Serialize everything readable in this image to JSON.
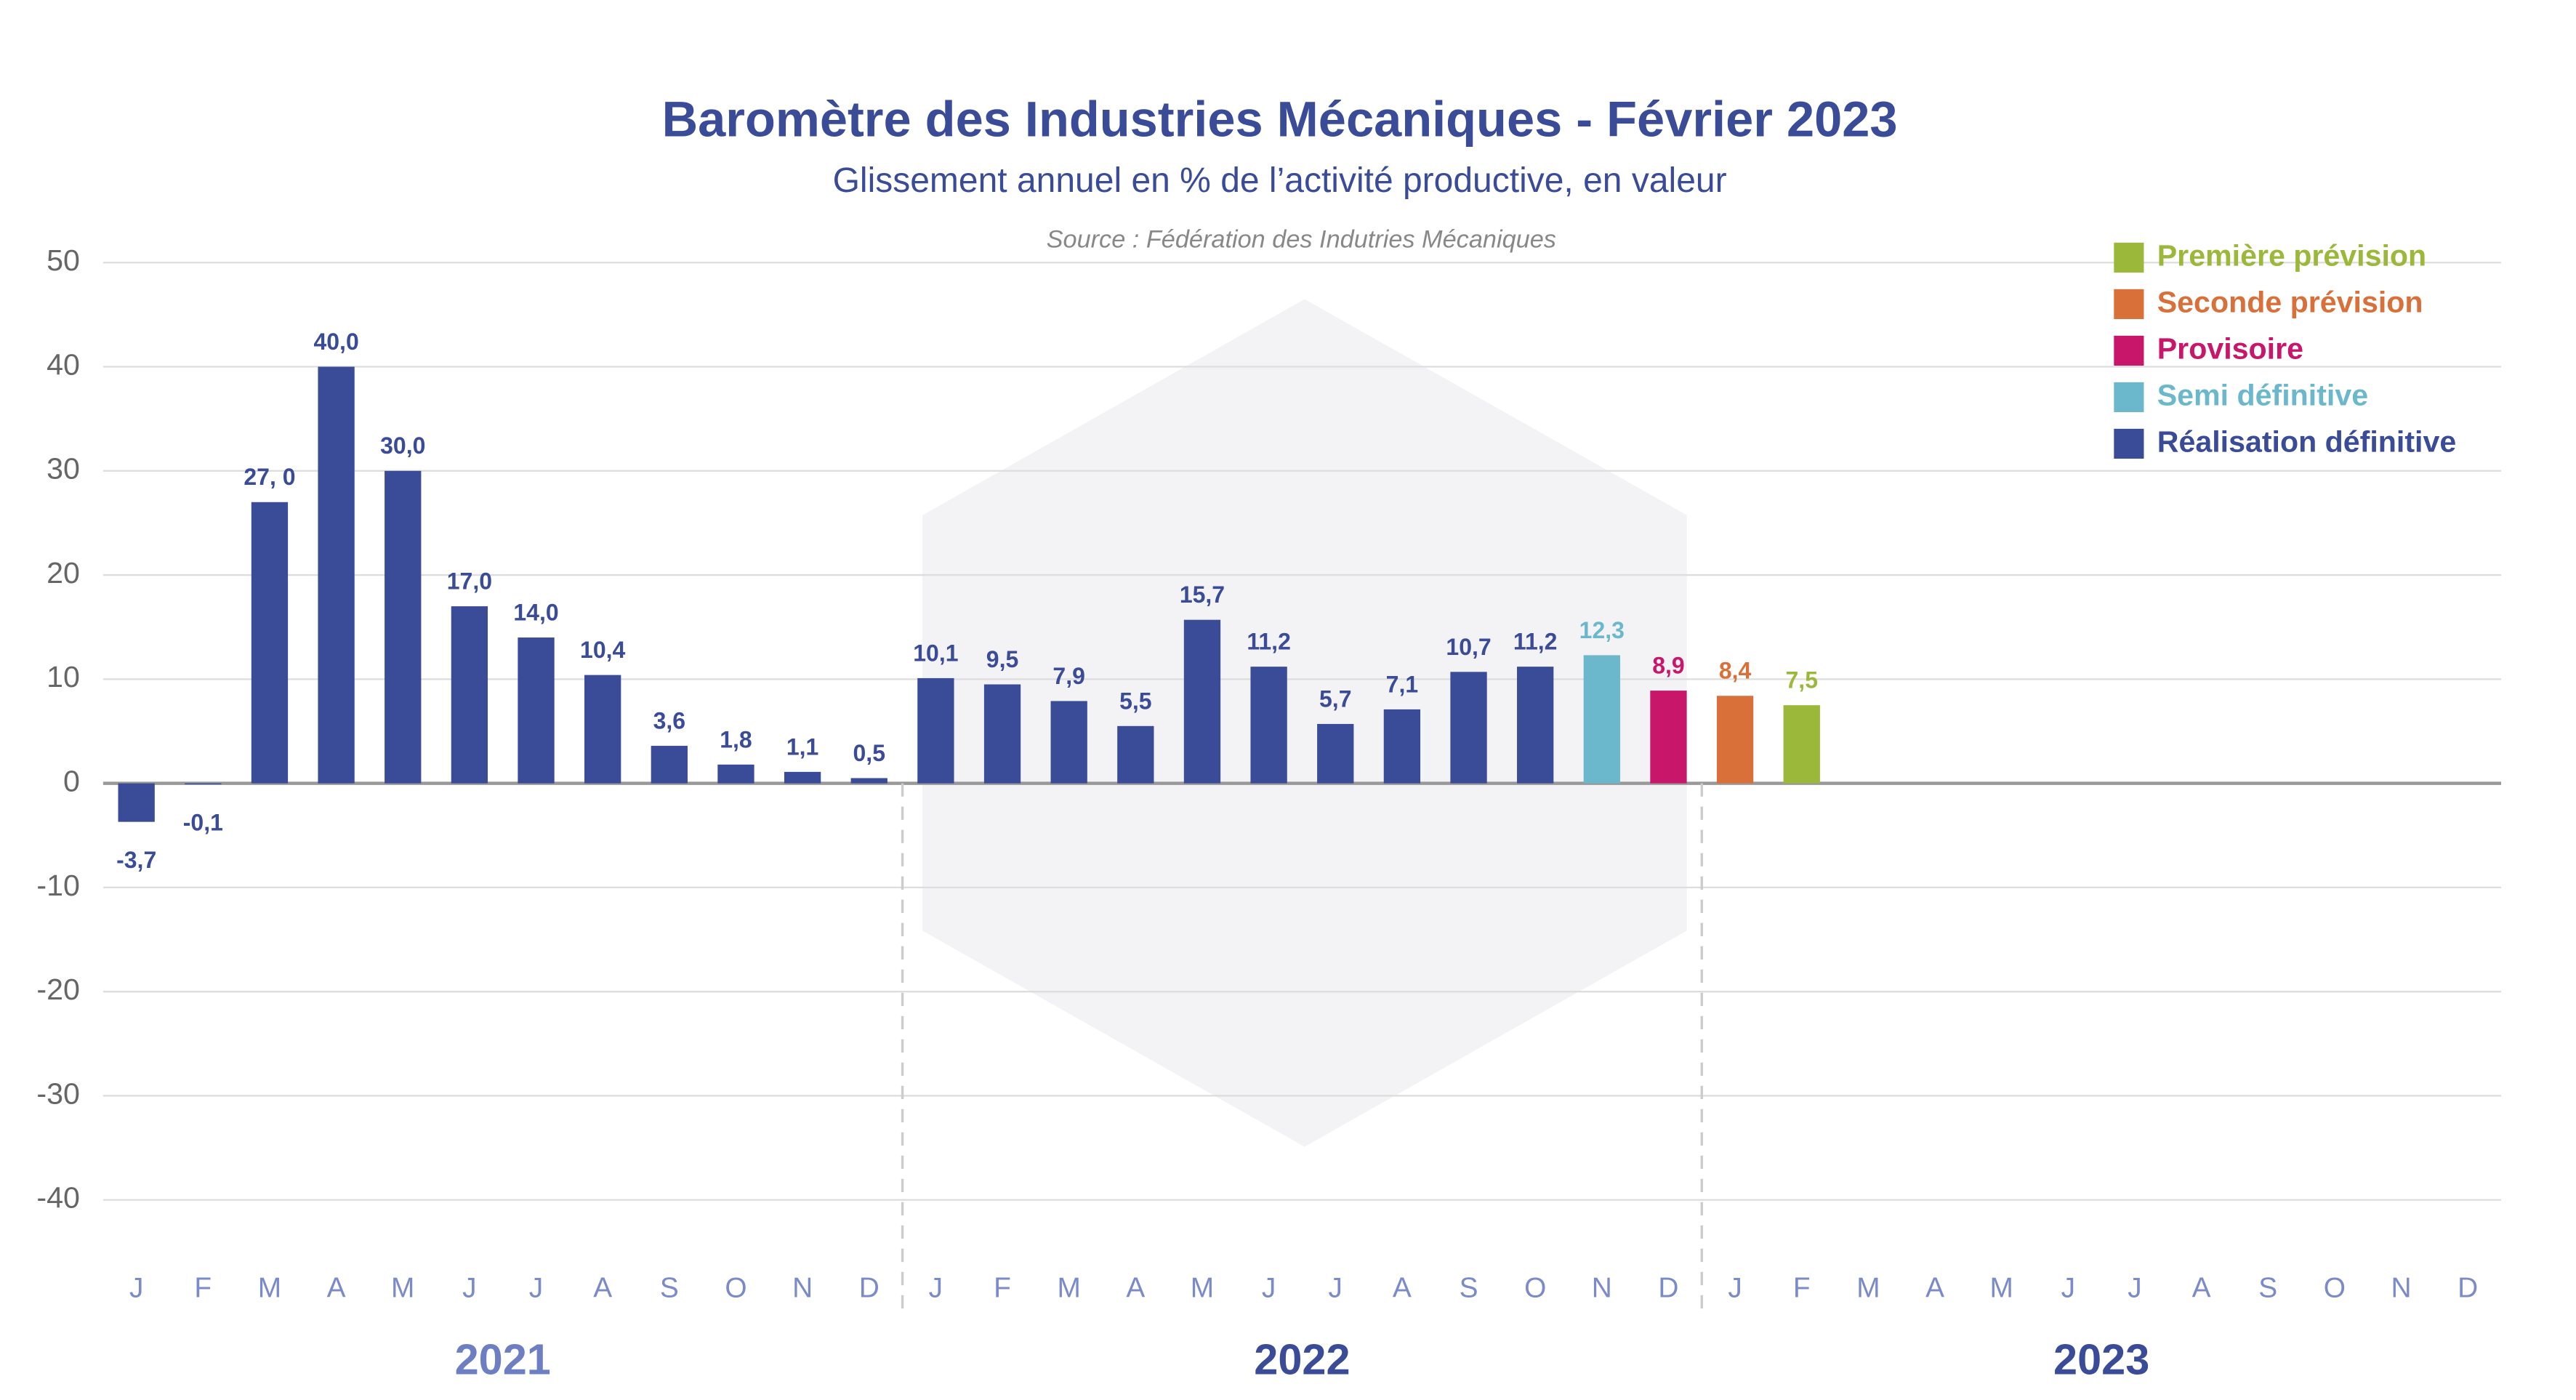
{
  "chart_data": {
    "type": "bar",
    "title": "Baromètre des Industries Mécaniques - Février 2023",
    "subtitle": "Glissement annuel en % de l’activité productive, en valeur",
    "source": "Source : Fédération des Indutries Mécaniques",
    "categories": [
      "J",
      "F",
      "M",
      "A",
      "M",
      "J",
      "J",
      "A",
      "S",
      "O",
      "N",
      "D",
      "J",
      "F",
      "M",
      "A",
      "M",
      "J",
      "J",
      "A",
      "S",
      "O",
      "N",
      "D",
      "J",
      "F",
      "M",
      "A",
      "M",
      "J",
      "J",
      "A",
      "S",
      "O",
      "N",
      "D"
    ],
    "years": [
      "2021",
      "2022",
      "2023"
    ],
    "ylim": [
      -40,
      50
    ],
    "yticks": [
      50,
      40,
      30,
      20,
      10,
      0,
      -10,
      -20,
      -30,
      -40
    ],
    "grid": true,
    "legend": "top-right",
    "series": [
      {
        "name": "Première prévision",
        "color": "#9bb83a",
        "values": [
          null,
          null,
          null,
          null,
          null,
          null,
          null,
          null,
          null,
          null,
          null,
          null,
          null,
          null,
          null,
          null,
          null,
          null,
          null,
          null,
          null,
          null,
          null,
          null,
          null,
          7.5,
          null,
          null,
          null,
          null,
          null,
          null,
          null,
          null,
          null,
          null
        ],
        "value_labels": [
          null,
          null,
          null,
          null,
          null,
          null,
          null,
          null,
          null,
          null,
          null,
          null,
          null,
          null,
          null,
          null,
          null,
          null,
          null,
          null,
          null,
          null,
          null,
          null,
          null,
          "7,5",
          null,
          null,
          null,
          null,
          null,
          null,
          null,
          null,
          null,
          null
        ]
      },
      {
        "name": "Seconde prévision",
        "color": "#d9703a",
        "values": [
          null,
          null,
          null,
          null,
          null,
          null,
          null,
          null,
          null,
          null,
          null,
          null,
          null,
          null,
          null,
          null,
          null,
          null,
          null,
          null,
          null,
          null,
          null,
          null,
          8.4,
          null,
          null,
          null,
          null,
          null,
          null,
          null,
          null,
          null,
          null,
          null
        ],
        "value_labels": [
          null,
          null,
          null,
          null,
          null,
          null,
          null,
          null,
          null,
          null,
          null,
          null,
          null,
          null,
          null,
          null,
          null,
          null,
          null,
          null,
          null,
          null,
          null,
          null,
          "8,4",
          null,
          null,
          null,
          null,
          null,
          null,
          null,
          null,
          null,
          null,
          null
        ]
      },
      {
        "name": "Provisoire",
        "color": "#c8166a",
        "values": [
          null,
          null,
          null,
          null,
          null,
          null,
          null,
          null,
          null,
          null,
          null,
          null,
          null,
          null,
          null,
          null,
          null,
          null,
          null,
          null,
          null,
          null,
          null,
          8.9,
          null,
          null,
          null,
          null,
          null,
          null,
          null,
          null,
          null,
          null,
          null,
          null
        ],
        "value_labels": [
          null,
          null,
          null,
          null,
          null,
          null,
          null,
          null,
          null,
          null,
          null,
          null,
          null,
          null,
          null,
          null,
          null,
          null,
          null,
          null,
          null,
          null,
          null,
          "8,9",
          null,
          null,
          null,
          null,
          null,
          null,
          null,
          null,
          null,
          null,
          null,
          null
        ]
      },
      {
        "name": "Semi définitive",
        "color": "#6bb8cc",
        "values": [
          null,
          null,
          null,
          null,
          null,
          null,
          null,
          null,
          null,
          null,
          null,
          null,
          null,
          null,
          null,
          null,
          null,
          null,
          null,
          null,
          null,
          null,
          12.3,
          null,
          null,
          null,
          null,
          null,
          null,
          null,
          null,
          null,
          null,
          null,
          null,
          null
        ],
        "value_labels": [
          null,
          null,
          null,
          null,
          null,
          null,
          null,
          null,
          null,
          null,
          null,
          null,
          null,
          null,
          null,
          null,
          null,
          null,
          null,
          null,
          null,
          null,
          "12,3",
          null,
          null,
          null,
          null,
          null,
          null,
          null,
          null,
          null,
          null,
          null,
          null,
          null
        ]
      },
      {
        "name": "Réalisation définitive",
        "color": "#3a4b98",
        "values": [
          -3.7,
          -0.1,
          27.0,
          40.0,
          30.0,
          17.0,
          14.0,
          10.4,
          3.6,
          1.8,
          1.1,
          0.5,
          10.1,
          9.5,
          7.9,
          5.5,
          15.7,
          11.2,
          5.7,
          7.1,
          10.7,
          11.2,
          null,
          null,
          null,
          null,
          null,
          null,
          null,
          null,
          null,
          null,
          null,
          null,
          null,
          null
        ],
        "value_labels": [
          "-3,7",
          "-0,1",
          "27, 0",
          "40,0",
          "30,0",
          "17,0",
          "14,0",
          "10,4",
          "3,6",
          "1,8",
          "1,1",
          "0,5",
          "10,1",
          "9,5",
          "7,9",
          "5,5",
          "15,7",
          "11,2",
          "5,7",
          "7,1",
          "10,7",
          "11,2",
          null,
          null,
          null,
          null,
          null,
          null,
          null,
          null,
          null,
          null,
          null,
          null,
          null,
          null
        ]
      }
    ]
  }
}
